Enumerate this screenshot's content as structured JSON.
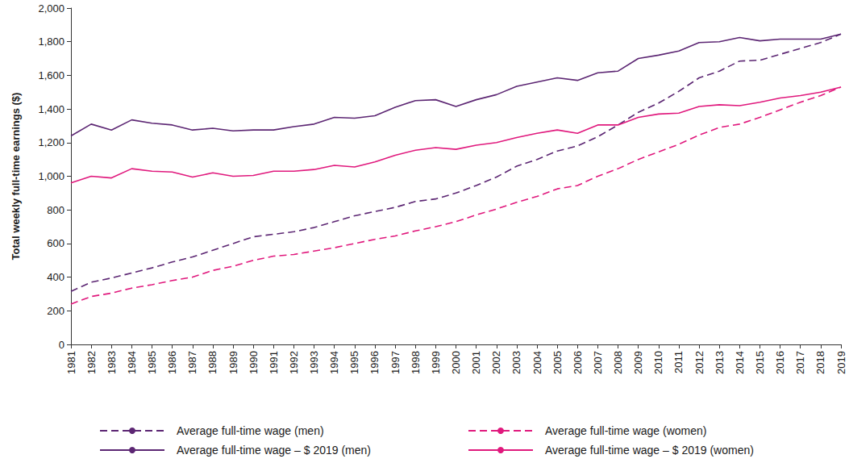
{
  "chart_data": {
    "type": "line",
    "y_label": "Total weekly full-time earnings ($)",
    "categories": [
      "1981",
      "1982",
      "1983",
      "1984",
      "1985",
      "1986",
      "1987",
      "1988",
      "1989",
      "1990",
      "1991",
      "1992",
      "1993",
      "1994",
      "1995",
      "1996",
      "1997",
      "1998",
      "1999",
      "2000",
      "2001",
      "2002",
      "2003",
      "2004",
      "2005",
      "2006",
      "2007",
      "2008",
      "2009",
      "2010",
      "2011",
      "2012",
      "2013",
      "2014",
      "2015",
      "2016",
      "2017",
      "2018",
      "2019"
    ],
    "series": [
      {
        "name": "Average full-time wage (men)",
        "color": "#5c2673",
        "line_style": "dashed",
        "values": [
          315,
          370,
          395,
          425,
          455,
          490,
          520,
          560,
          600,
          640,
          655,
          670,
          695,
          730,
          765,
          790,
          815,
          850,
          865,
          900,
          945,
          995,
          1060,
          1100,
          1150,
          1180,
          1235,
          1305,
          1380,
          1435,
          1505,
          1585,
          1625,
          1685,
          1690,
          1725,
          1760,
          1795,
          1845
        ]
      },
      {
        "name": "Average full-time wage (women)",
        "color": "#e0197d",
        "line_style": "dashed",
        "values": [
          240,
          285,
          305,
          335,
          355,
          380,
          400,
          440,
          465,
          500,
          525,
          535,
          555,
          575,
          600,
          625,
          645,
          675,
          700,
          730,
          770,
          805,
          845,
          880,
          925,
          945,
          1000,
          1045,
          1100,
          1145,
          1190,
          1245,
          1290,
          1310,
          1350,
          1395,
          1440,
          1480,
          1530
        ]
      },
      {
        "name": "Average full-time wage – $ 2019 (men)",
        "color": "#5c2673",
        "line_style": "solid",
        "values": [
          1240,
          1310,
          1275,
          1335,
          1315,
          1305,
          1275,
          1285,
          1270,
          1275,
          1275,
          1295,
          1310,
          1350,
          1345,
          1360,
          1410,
          1450,
          1455,
          1415,
          1455,
          1485,
          1535,
          1560,
          1585,
          1570,
          1615,
          1625,
          1700,
          1720,
          1745,
          1795,
          1800,
          1825,
          1805,
          1815,
          1815,
          1815,
          1845
        ]
      },
      {
        "name": "Average full-time wage – $ 2019 (women)",
        "color": "#e0197d",
        "line_style": "solid",
        "values": [
          960,
          1000,
          990,
          1045,
          1030,
          1025,
          995,
          1020,
          1000,
          1005,
          1030,
          1030,
          1040,
          1065,
          1055,
          1085,
          1125,
          1155,
          1170,
          1160,
          1185,
          1200,
          1230,
          1255,
          1275,
          1255,
          1305,
          1305,
          1350,
          1370,
          1375,
          1415,
          1425,
          1420,
          1440,
          1465,
          1480,
          1500,
          1530
        ]
      }
    ],
    "ylim": [
      0,
      2000
    ],
    "yticks": [
      0,
      200,
      400,
      600,
      800,
      {
        "value": 1000,
        "label": "1,000"
      },
      {
        "value": 1200,
        "label": "1,200"
      },
      {
        "value": 1400,
        "label": "1,400"
      },
      {
        "value": 1600,
        "label": "1,600"
      },
      {
        "value": 1800,
        "label": "1,800"
      },
      {
        "value": 2000,
        "label": "2,000"
      }
    ],
    "grid": false,
    "legend": "bottom"
  }
}
